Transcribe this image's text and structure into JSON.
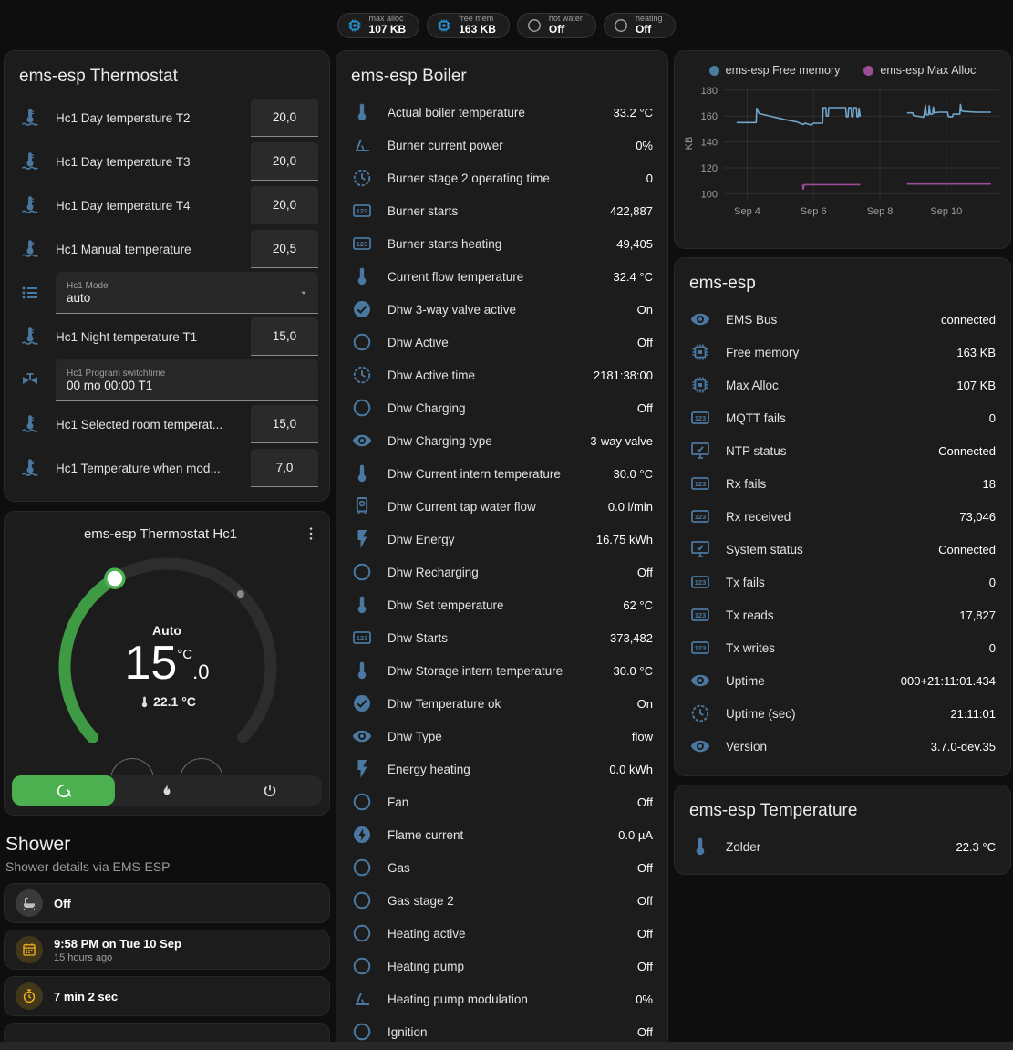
{
  "colors": {
    "icon_blue": "#4a78a0",
    "badge_blue": "#2ba0e8",
    "badge_gray": "#9e9e9e",
    "green": "#3f9a44",
    "green_bright": "#4caf50",
    "amber": "#f2b01e",
    "chart_blue": "#71a7cc",
    "chart_purple": "#9b4d97",
    "grid": "#2f2f2f",
    "tick_text": "#9e9e9e"
  },
  "header_badges": [
    {
      "label": "max alloc",
      "value": "107 KB",
      "icon": "chip-icon",
      "color": "#2ba0e8"
    },
    {
      "label": "free mem",
      "value": "163 KB",
      "icon": "chip-icon",
      "color": "#2ba0e8"
    },
    {
      "label": "hot water",
      "value": "Off",
      "icon": "circle-outline-icon",
      "color": "#9e9e9e"
    },
    {
      "label": "heating",
      "value": "Off",
      "icon": "circle-outline-icon",
      "color": "#9e9e9e"
    }
  ],
  "thermostat_card": {
    "title": "ems-esp Thermostat",
    "rows": [
      {
        "kind": "number",
        "icon": "water-thermometer-icon",
        "label": "Hc1 Day temperature T2",
        "value": "20,0"
      },
      {
        "kind": "number",
        "icon": "water-thermometer-icon",
        "label": "Hc1 Day temperature T3",
        "value": "20,0"
      },
      {
        "kind": "number",
        "icon": "water-thermometer-icon",
        "label": "Hc1 Day temperature T4",
        "value": "20,0"
      },
      {
        "kind": "number",
        "icon": "water-thermometer-icon",
        "label": "Hc1 Manual temperature",
        "value": "20,5"
      },
      {
        "kind": "select",
        "icon": "list-icon",
        "label": "Hc1 Mode",
        "value": "auto"
      },
      {
        "kind": "number",
        "icon": "water-thermometer-icon",
        "label": "Hc1 Night temperature T1",
        "value": "15,0"
      },
      {
        "kind": "text",
        "icon": "valve-icon",
        "label": "Hc1 Program switchtime",
        "value": "00 mo 00:00 T1"
      },
      {
        "kind": "number",
        "icon": "water-thermometer-icon",
        "label": "Hc1 Selected room temperat...",
        "value": "15,0"
      },
      {
        "kind": "number",
        "icon": "water-thermometer-icon",
        "label": "Hc1 Temperature when mod...",
        "value": "7,0"
      }
    ]
  },
  "hc1_card": {
    "title": "ems-esp Thermostat Hc1",
    "mode_label": "Auto",
    "target_int": "15",
    "target_dec": ".0",
    "target_unit": "°C",
    "current_temp": "22.1 °C",
    "modes": [
      {
        "icon": "auto-icon",
        "active": true
      },
      {
        "icon": "flame-icon",
        "active": false
      },
      {
        "icon": "power-icon",
        "active": false
      }
    ]
  },
  "shower": {
    "title": "Shower",
    "subtitle": "Shower details via EMS-ESP",
    "tiles": [
      {
        "icon": "bath-icon",
        "icon_color": "#bdbdbd",
        "circle": "#3a3a3a",
        "primary": "Off",
        "secondary": ""
      },
      {
        "icon": "calendar-icon",
        "icon_color": "#f2b01e",
        "circle": "rgba(242,176,30,0.18)",
        "primary": "9:58 PM on Tue 10 Sep",
        "secondary": "15 hours ago"
      },
      {
        "icon": "timer-icon",
        "icon_color": "#f2b01e",
        "circle": "rgba(242,176,30,0.18)",
        "primary": "7 min 2 sec",
        "secondary": ""
      }
    ],
    "partial_tile_icon": "snowflake-alert-icon",
    "partial_tile_icon_color": "#4f86b8"
  },
  "boiler_card": {
    "title": "ems-esp Boiler",
    "rows": [
      {
        "icon": "thermometer-icon",
        "label": "Actual boiler temperature",
        "value": "33.2 °C"
      },
      {
        "icon": "angle-icon",
        "label": "Burner current power",
        "value": "0%"
      },
      {
        "icon": "clock-icon",
        "label": "Burner stage 2 operating time",
        "value": "0"
      },
      {
        "icon": "counter-icon",
        "label": "Burner starts",
        "value": "422,887"
      },
      {
        "icon": "counter-icon",
        "label": "Burner starts heating",
        "value": "49,405"
      },
      {
        "icon": "thermometer-icon",
        "label": "Current flow temperature",
        "value": "32.4 °C"
      },
      {
        "icon": "check-circle-icon",
        "label": "Dhw 3-way valve active",
        "value": "On"
      },
      {
        "icon": "circle-outline-icon",
        "label": "Dhw Active",
        "value": "Off"
      },
      {
        "icon": "clock-icon",
        "label": "Dhw Active time",
        "value": "2181:38:00"
      },
      {
        "icon": "circle-outline-icon",
        "label": "Dhw Charging",
        "value": "Off"
      },
      {
        "icon": "eye-icon",
        "label": "Dhw Charging type",
        "value": "3-way valve"
      },
      {
        "icon": "thermometer-icon",
        "label": "Dhw Current intern temperature",
        "value": "30.0 °C"
      },
      {
        "icon": "water-boiler-icon",
        "label": "Dhw Current tap water flow",
        "value": "0.0 l/min"
      },
      {
        "icon": "lightning-icon",
        "label": "Dhw Energy",
        "value": "16.75 kWh"
      },
      {
        "icon": "circle-outline-icon",
        "label": "Dhw Recharging",
        "value": "Off"
      },
      {
        "icon": "thermometer-icon",
        "label": "Dhw Set temperature",
        "value": "62 °C"
      },
      {
        "icon": "counter-icon",
        "label": "Dhw Starts",
        "value": "373,482"
      },
      {
        "icon": "thermometer-icon",
        "label": "Dhw Storage intern temperature",
        "value": "30.0 °C"
      },
      {
        "icon": "check-circle-icon",
        "label": "Dhw Temperature ok",
        "value": "On"
      },
      {
        "icon": "eye-icon",
        "label": "Dhw Type",
        "value": "flow"
      },
      {
        "icon": "lightning-icon",
        "label": "Energy heating",
        "value": "0.0 kWh"
      },
      {
        "icon": "circle-outline-icon",
        "label": "Fan",
        "value": "Off"
      },
      {
        "icon": "flash-circle-icon",
        "label": "Flame current",
        "value": "0.0 µA"
      },
      {
        "icon": "circle-outline-icon",
        "label": "Gas",
        "value": "Off"
      },
      {
        "icon": "circle-outline-icon",
        "label": "Gas stage 2",
        "value": "Off"
      },
      {
        "icon": "circle-outline-icon",
        "label": "Heating active",
        "value": "Off"
      },
      {
        "icon": "circle-outline-icon",
        "label": "Heating pump",
        "value": "Off"
      },
      {
        "icon": "angle-icon",
        "label": "Heating pump modulation",
        "value": "0%"
      },
      {
        "icon": "circle-outline-icon",
        "label": "Ignition",
        "value": "Off"
      }
    ]
  },
  "emsesp_card": {
    "title": "ems-esp",
    "rows": [
      {
        "icon": "eye-icon",
        "label": "EMS Bus",
        "value": "connected"
      },
      {
        "icon": "chip-icon",
        "label": "Free memory",
        "value": "163 KB"
      },
      {
        "icon": "chip-icon",
        "label": "Max Alloc",
        "value": "107 KB"
      },
      {
        "icon": "counter-icon",
        "label": "MQTT fails",
        "value": "0"
      },
      {
        "icon": "monitor-check-icon",
        "label": "NTP status",
        "value": "Connected"
      },
      {
        "icon": "counter-icon",
        "label": "Rx fails",
        "value": "18"
      },
      {
        "icon": "counter-icon",
        "label": "Rx received",
        "value": "73,046"
      },
      {
        "icon": "monitor-check-icon",
        "label": "System status",
        "value": "Connected"
      },
      {
        "icon": "counter-icon",
        "label": "Tx fails",
        "value": "0"
      },
      {
        "icon": "counter-icon",
        "label": "Tx reads",
        "value": "17,827"
      },
      {
        "icon": "counter-icon",
        "label": "Tx writes",
        "value": "0"
      },
      {
        "icon": "eye-icon",
        "label": "Uptime",
        "value": "000+21:11:01.434"
      },
      {
        "icon": "clock-icon",
        "label": "Uptime (sec)",
        "value": "21:11:01"
      },
      {
        "icon": "eye-icon",
        "label": "Version",
        "value": "3.7.0-dev.35"
      }
    ]
  },
  "temp_card": {
    "title": "ems-esp Temperature",
    "rows": [
      {
        "icon": "thermometer-icon",
        "label": "Zolder",
        "value": "22.3 °C"
      }
    ]
  },
  "chart_data": {
    "type": "line",
    "ylabel": "KB",
    "ylim": [
      96,
      182
    ],
    "yticks": [
      100,
      120,
      140,
      160,
      180
    ],
    "xlim": [
      3.3,
      11.6
    ],
    "xticks": [
      {
        "day": 4,
        "label": "Sep 4"
      },
      {
        "day": 6,
        "label": "Sep 6"
      },
      {
        "day": 8,
        "label": "Sep 8"
      },
      {
        "day": 10,
        "label": "Sep 10"
      }
    ],
    "grid": true,
    "legend_position": "top",
    "series": [
      {
        "name": "ems-esp Free memory",
        "color": "#71a7cc",
        "dot_color": "#4a7ca0",
        "segments": [
          [
            [
              3.68,
              155
            ],
            [
              4.27,
              155
            ],
            [
              4.29,
              166
            ],
            [
              4.36,
              162
            ],
            [
              4.6,
              160.5
            ],
            [
              5.1,
              157.5
            ],
            [
              5.5,
              155.5
            ],
            [
              5.68,
              153.5
            ],
            [
              5.75,
              154.5
            ],
            [
              5.93,
              153
            ],
            [
              6.0,
              154.5
            ],
            [
              6.27,
              154.5
            ],
            [
              6.29,
              166.5
            ],
            [
              6.37,
              166.5
            ],
            [
              6.39,
              160
            ],
            [
              6.44,
              160
            ],
            [
              6.46,
              166.5
            ],
            [
              6.97,
              166.5
            ],
            [
              6.99,
              159.5
            ],
            [
              7.04,
              159.5
            ],
            [
              7.06,
              166.5
            ],
            [
              7.13,
              166.5
            ],
            [
              7.15,
              159.5
            ],
            [
              7.19,
              159.5
            ],
            [
              7.21,
              166.5
            ],
            [
              7.29,
              166.5
            ],
            [
              7.31,
              159.5
            ],
            [
              7.35,
              159.5
            ],
            [
              7.37,
              166
            ],
            [
              7.41,
              159.5
            ]
          ],
          [
            [
              8.82,
              162.5
            ],
            [
              8.99,
              162.5
            ],
            [
              9.01,
              160.5
            ],
            [
              9.1,
              160
            ],
            [
              9.24,
              159.5
            ],
            [
              9.31,
              159
            ],
            [
              9.34,
              162
            ],
            [
              9.37,
              168.5
            ],
            [
              9.4,
              161
            ],
            [
              9.47,
              161
            ],
            [
              9.49,
              168
            ],
            [
              9.52,
              161.5
            ],
            [
              9.59,
              161.5
            ],
            [
              9.61,
              167
            ],
            [
              9.64,
              162.5
            ],
            [
              9.77,
              163
            ],
            [
              10.04,
              163
            ],
            [
              10.07,
              159.5
            ],
            [
              10.19,
              159.5
            ],
            [
              10.21,
              161.5
            ],
            [
              10.41,
              161.5
            ],
            [
              10.43,
              169
            ],
            [
              10.46,
              164
            ],
            [
              10.54,
              163.5
            ],
            [
              10.9,
              163
            ],
            [
              11.35,
              163
            ]
          ]
        ]
      },
      {
        "name": "ems-esp Max Alloc",
        "color": "#9b4d97",
        "dot_color": "#9b4d97",
        "segments": [
          [
            [
              5.67,
              107
            ],
            [
              5.69,
              103.5
            ],
            [
              5.72,
              107
            ],
            [
              7.41,
              107
            ]
          ],
          [
            [
              8.82,
              107.5
            ],
            [
              11.35,
              107.5
            ]
          ]
        ]
      }
    ]
  }
}
